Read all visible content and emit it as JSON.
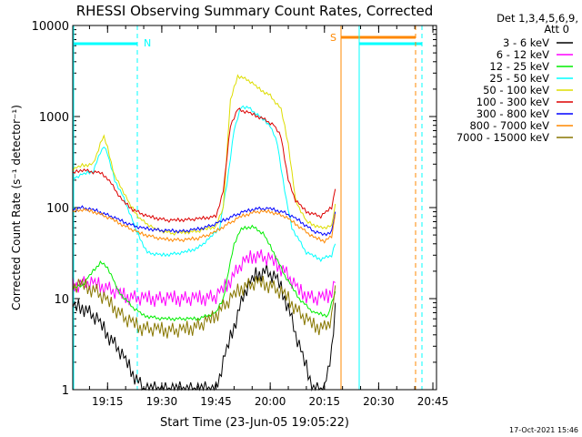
{
  "chart_data": {
    "type": "line",
    "title": "RHESSI Observing Summary Count Rates, Corrected",
    "xlabel": "Start Time (23-Jun-05 19:05:22)",
    "ylabel": "Corrected Count Rate (s⁻¹ detector⁻¹)",
    "yscale": "log",
    "ylim": [
      1,
      10000
    ],
    "xlim": [
      "19:05:22",
      "20:46:00"
    ],
    "x_ticks": [
      "19:15",
      "19:30",
      "19:45",
      "20:00",
      "20:15",
      "20:30",
      "20:45"
    ],
    "y_ticks": [
      "1",
      "10",
      "100",
      "1000",
      "10000"
    ],
    "timestamp": "17-Oct-2021 15:46",
    "legend": {
      "header": [
        "Det 1,3,4,5,6,9,",
        "Att 0"
      ],
      "position": "right",
      "entries": [
        {
          "name": "3 - 6 keV",
          "color": "#000000"
        },
        {
          "name": "6 - 12 keV",
          "color": "#ff00ff"
        },
        {
          "name": "12 - 25 keV",
          "color": "#00ee00"
        },
        {
          "name": "25 - 50 keV",
          "color": "#00ffff"
        },
        {
          "name": "50 - 100 keV",
          "color": "#dddd00"
        },
        {
          "name": "100 - 300 keV",
          "color": "#dd0000"
        },
        {
          "name": "300 - 800 keV",
          "color": "#0000ff"
        },
        {
          "name": "800 - 7000 keV",
          "color": "#ff8800"
        },
        {
          "name": "7000 - 15000 keV",
          "color": "#887700"
        }
      ]
    },
    "annotations": [
      {
        "text": "N",
        "color": "#00ffff"
      },
      {
        "text": "S",
        "color": "#ff8800"
      }
    ],
    "series": [
      {
        "name": "3 - 6 keV",
        "color": "#000000",
        "points": [
          [
            "19:05:22",
            8
          ],
          [
            "19:08",
            8
          ],
          [
            "19:10",
            7
          ],
          [
            "19:12",
            6
          ],
          [
            "19:15",
            4
          ],
          [
            "19:18",
            2.8
          ],
          [
            "19:22",
            1.5
          ],
          [
            "19:25",
            1
          ],
          [
            "19:30",
            1
          ],
          [
            "19:40",
            1
          ],
          [
            "19:45",
            1
          ],
          [
            "19:47",
            2
          ],
          [
            "19:50",
            5
          ],
          [
            "19:53",
            12
          ],
          [
            "19:56",
            18
          ],
          [
            "19:59",
            20
          ],
          [
            "20:02",
            16
          ],
          [
            "20:05",
            8
          ],
          [
            "20:08",
            3
          ],
          [
            "20:12",
            1
          ],
          [
            "20:15",
            1
          ],
          [
            "20:17",
            2.5
          ],
          [
            "20:18",
            9
          ]
        ]
      },
      {
        "name": "6 - 12 keV",
        "color": "#ff00ff",
        "points": [
          [
            "19:05:22",
            14
          ],
          [
            "19:10",
            15
          ],
          [
            "19:15",
            13
          ],
          [
            "19:20",
            10.5
          ],
          [
            "19:25",
            10
          ],
          [
            "19:30",
            10
          ],
          [
            "19:40",
            10
          ],
          [
            "19:45",
            10.5
          ],
          [
            "19:48",
            14
          ],
          [
            "19:52",
            24
          ],
          [
            "19:56",
            30
          ],
          [
            "20:00",
            27
          ],
          [
            "20:04",
            20
          ],
          [
            "20:08",
            12
          ],
          [
            "20:12",
            10
          ],
          [
            "20:16",
            10.5
          ],
          [
            "20:18",
            15
          ]
        ]
      },
      {
        "name": "12 - 25 keV",
        "color": "#00ee00",
        "points": [
          [
            "19:05:22",
            13
          ],
          [
            "19:08",
            14
          ],
          [
            "19:11",
            20
          ],
          [
            "19:13",
            25
          ],
          [
            "19:15",
            22
          ],
          [
            "19:18",
            12
          ],
          [
            "19:22",
            8
          ],
          [
            "19:25",
            6.5
          ],
          [
            "19:30",
            6
          ],
          [
            "19:40",
            6
          ],
          [
            "19:45",
            7
          ],
          [
            "19:47",
            10
          ],
          [
            "19:50",
            40
          ],
          [
            "19:52",
            58
          ],
          [
            "19:55",
            62
          ],
          [
            "19:58",
            52
          ],
          [
            "20:01",
            32
          ],
          [
            "20:04",
            18
          ],
          [
            "20:08",
            10
          ],
          [
            "20:12",
            7
          ],
          [
            "20:16",
            6.5
          ],
          [
            "20:18",
            12
          ]
        ]
      },
      {
        "name": "25 - 50 keV",
        "color": "#00ffff",
        "points": [
          [
            "19:05:22",
            210
          ],
          [
            "19:08",
            230
          ],
          [
            "19:11",
            250
          ],
          [
            "19:13",
            400
          ],
          [
            "19:14",
            480
          ],
          [
            "19:15",
            380
          ],
          [
            "19:17",
            200
          ],
          [
            "19:19",
            140
          ],
          [
            "19:21",
            90
          ],
          [
            "19:23",
            55
          ],
          [
            "19:26",
            32
          ],
          [
            "19:30",
            30
          ],
          [
            "19:36",
            32
          ],
          [
            "19:40",
            36
          ],
          [
            "19:43",
            45
          ],
          [
            "19:46",
            60
          ],
          [
            "19:48",
            180
          ],
          [
            "19:50",
            700
          ],
          [
            "19:52",
            1300
          ],
          [
            "19:54",
            1250
          ],
          [
            "19:57",
            1000
          ],
          [
            "20:00",
            800
          ],
          [
            "20:02",
            500
          ],
          [
            "20:04",
            150
          ],
          [
            "20:06",
            60
          ],
          [
            "20:10",
            32
          ],
          [
            "20:14",
            27
          ],
          [
            "20:17",
            30
          ],
          [
            "20:18",
            40
          ]
        ]
      },
      {
        "name": "50 - 100 keV",
        "color": "#dddd00",
        "points": [
          [
            "19:05:22",
            260
          ],
          [
            "19:08",
            290
          ],
          [
            "19:11",
            300
          ],
          [
            "19:13",
            500
          ],
          [
            "19:14",
            600
          ],
          [
            "19:15",
            450
          ],
          [
            "19:17",
            220
          ],
          [
            "19:19",
            160
          ],
          [
            "19:21",
            110
          ],
          [
            "19:24",
            75
          ],
          [
            "19:28",
            58
          ],
          [
            "19:33",
            52
          ],
          [
            "19:40",
            55
          ],
          [
            "19:45",
            62
          ],
          [
            "19:47",
            100
          ],
          [
            "19:49",
            1500
          ],
          [
            "19:51",
            2800
          ],
          [
            "19:54",
            2500
          ],
          [
            "19:57",
            2000
          ],
          [
            "20:00",
            1700
          ],
          [
            "20:03",
            1200
          ],
          [
            "20:05",
            500
          ],
          [
            "20:07",
            120
          ],
          [
            "20:10",
            70
          ],
          [
            "20:14",
            60
          ],
          [
            "20:17",
            62
          ],
          [
            "20:18",
            110
          ]
        ]
      },
      {
        "name": "100 - 300 keV",
        "color": "#dd0000",
        "points": [
          [
            "19:05:22",
            240
          ],
          [
            "19:08",
            260
          ],
          [
            "19:11",
            245
          ],
          [
            "19:13",
            240
          ],
          [
            "19:15",
            210
          ],
          [
            "19:17",
            160
          ],
          [
            "19:19",
            120
          ],
          [
            "19:22",
            95
          ],
          [
            "19:26",
            80
          ],
          [
            "19:32",
            72
          ],
          [
            "19:40",
            75
          ],
          [
            "19:45",
            80
          ],
          [
            "19:47",
            150
          ],
          [
            "19:49",
            800
          ],
          [
            "19:51",
            1200
          ],
          [
            "19:54",
            1100
          ],
          [
            "19:58",
            950
          ],
          [
            "20:01",
            800
          ],
          [
            "20:03",
            600
          ],
          [
            "20:05",
            200
          ],
          [
            "20:07",
            120
          ],
          [
            "20:10",
            90
          ],
          [
            "20:14",
            80
          ],
          [
            "20:17",
            100
          ],
          [
            "20:18",
            160
          ]
        ]
      },
      {
        "name": "300 - 800 keV",
        "color": "#0000ff",
        "points": [
          [
            "19:05:22",
            95
          ],
          [
            "19:08",
            100
          ],
          [
            "19:12",
            92
          ],
          [
            "19:16",
            80
          ],
          [
            "19:20",
            68
          ],
          [
            "19:24",
            60
          ],
          [
            "19:30",
            56
          ],
          [
            "19:36",
            55
          ],
          [
            "19:40",
            58
          ],
          [
            "19:44",
            64
          ],
          [
            "19:48",
            75
          ],
          [
            "19:52",
            88
          ],
          [
            "19:56",
            97
          ],
          [
            "20:00",
            97
          ],
          [
            "20:04",
            88
          ],
          [
            "20:08",
            72
          ],
          [
            "20:12",
            55
          ],
          [
            "20:15",
            50
          ],
          [
            "20:17",
            55
          ],
          [
            "20:18",
            90
          ]
        ]
      },
      {
        "name": "800 - 7000 keV",
        "color": "#ff8800",
        "points": [
          [
            "19:05:22",
            90
          ],
          [
            "19:08",
            95
          ],
          [
            "19:12",
            88
          ],
          [
            "19:16",
            75
          ],
          [
            "19:20",
            62
          ],
          [
            "19:24",
            52
          ],
          [
            "19:30",
            45
          ],
          [
            "19:36",
            44
          ],
          [
            "19:40",
            46
          ],
          [
            "19:44",
            52
          ],
          [
            "19:48",
            65
          ],
          [
            "19:52",
            80
          ],
          [
            "19:56",
            90
          ],
          [
            "20:00",
            90
          ],
          [
            "20:04",
            80
          ],
          [
            "20:08",
            62
          ],
          [
            "20:12",
            47
          ],
          [
            "20:15",
            43
          ],
          [
            "20:17",
            48
          ],
          [
            "20:18",
            85
          ]
        ]
      },
      {
        "name": "7000 - 15000 keV",
        "color": "#887700",
        "points": [
          [
            "19:05:22",
            14
          ],
          [
            "19:08",
            14
          ],
          [
            "19:12",
            12
          ],
          [
            "19:16",
            8.5
          ],
          [
            "19:20",
            6
          ],
          [
            "19:24",
            4.8
          ],
          [
            "19:30",
            4.5
          ],
          [
            "19:36",
            4.5
          ],
          [
            "19:40",
            5
          ],
          [
            "19:44",
            6
          ],
          [
            "19:48",
            9
          ],
          [
            "19:52",
            13
          ],
          [
            "19:56",
            15
          ],
          [
            "20:00",
            14
          ],
          [
            "20:04",
            11
          ],
          [
            "20:08",
            7
          ],
          [
            "20:12",
            5
          ],
          [
            "20:15",
            4.8
          ],
          [
            "20:17",
            6
          ],
          [
            "20:18",
            14
          ]
        ]
      }
    ]
  }
}
